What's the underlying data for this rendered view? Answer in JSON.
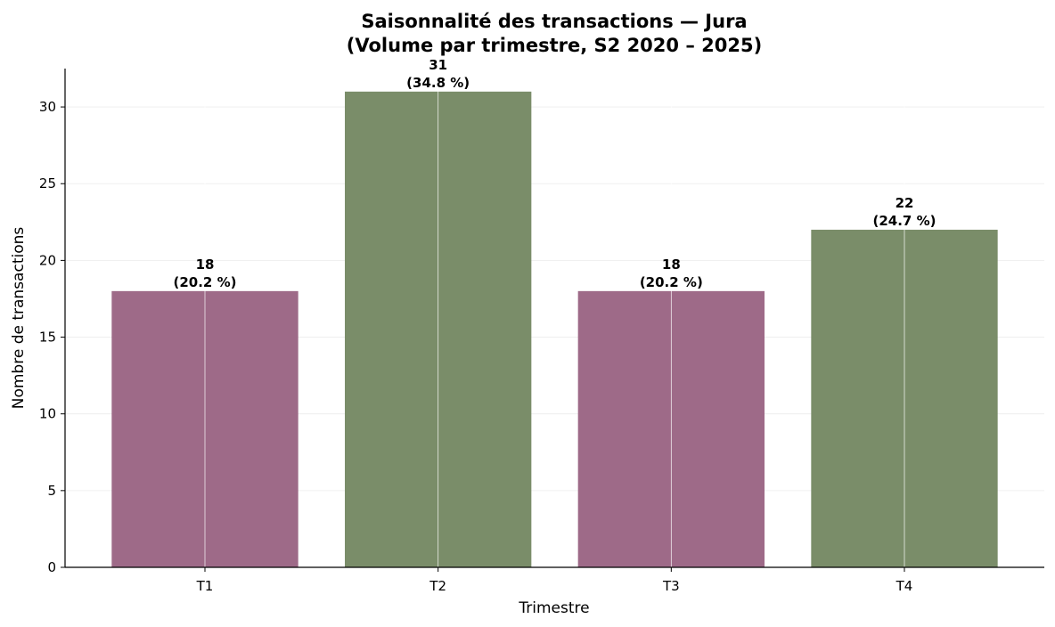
{
  "chart_data": {
    "type": "bar",
    "title_line1": "Saisonnalité des transactions — Jura",
    "title_line2": "(Volume par trimestre, S2 2020 – 2025)",
    "xlabel": "Trimestre",
    "ylabel": "Nombre de transactions",
    "categories": [
      "T1",
      "T2",
      "T3",
      "T4"
    ],
    "values": [
      18,
      31,
      18,
      22
    ],
    "percent_labels": [
      "(20.2 %)",
      "(34.8 %)",
      "(20.2 %)",
      "(24.7 %)"
    ],
    "bar_colors": [
      "#9e6a88",
      "#7a8d69",
      "#9e6a88",
      "#7a8d69"
    ],
    "ylim": [
      0,
      32.5
    ],
    "yticks": [
      0,
      5,
      10,
      15,
      20,
      25,
      30
    ],
    "grid": true,
    "legend": "none"
  }
}
